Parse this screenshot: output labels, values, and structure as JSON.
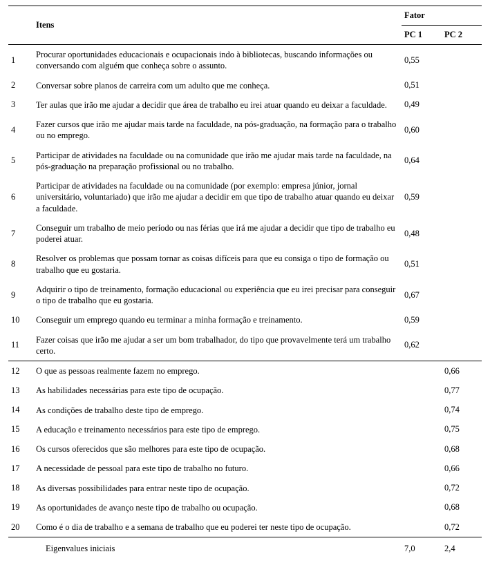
{
  "header": {
    "itens": "Itens",
    "fator": "Fator",
    "pc1": "PC 1",
    "pc2": "PC 2"
  },
  "rows_a": [
    {
      "n": "1",
      "text": "Procurar oportunidades educacionais e ocupacionais indo à bibliotecas, buscando informações ou conversando com alguém que conheça sobre o assunto.",
      "pc1": "0,55"
    },
    {
      "n": "2",
      "text": "Conversar sobre planos de carreira com um adulto que me conheça.",
      "pc1": "0,51"
    },
    {
      "n": "3",
      "text": "Ter aulas que irão me ajudar a decidir que área de trabalho eu irei atuar quando eu deixar a faculdade.",
      "pc1": "0,49"
    },
    {
      "n": "4",
      "text": "Fazer cursos que irão me ajudar mais tarde na faculdade, na pós-graduação, na formação para o trabalho ou no emprego.",
      "pc1": "0,60"
    },
    {
      "n": "5",
      "text": "Participar de atividades na faculdade ou na comunidade que irão me ajudar mais tarde na faculdade, na pós-graduação na preparação profissional ou no trabalho.",
      "pc1": "0,64"
    },
    {
      "n": "6",
      "text": "Participar de atividades na faculdade ou na comunidade (por exemplo: empresa júnior, jornal universitário, voluntariado) que irão me ajudar a decidir em que tipo de trabalho atuar quando eu deixar a faculdade.",
      "pc1": "0,59"
    },
    {
      "n": "7",
      "text": "Conseguir um trabalho de meio período ou nas férias que irá me ajudar a decidir que tipo de trabalho eu poderei atuar.",
      "pc1": "0,48"
    },
    {
      "n": "8",
      "text": "Resolver os problemas que possam tornar as coisas difíceis para que eu consiga o tipo de formação ou trabalho que eu gostaria.",
      "pc1": "0,51"
    },
    {
      "n": "9",
      "text": "Adquirir o tipo de treinamento, formação educacional ou experiência que eu irei precisar para conseguir o tipo de trabalho que eu gostaria.",
      "pc1": "0,67"
    },
    {
      "n": "10",
      "text": "Conseguir um emprego quando eu terminar a minha formação e treinamento.",
      "pc1": "0,59"
    },
    {
      "n": "11",
      "text": "Fazer coisas que irão me ajudar a ser um bom trabalhador, do tipo que provavelmente terá um trabalho certo.",
      "pc1": "0,62"
    }
  ],
  "rows_b": [
    {
      "n": "12",
      "text": "O que as pessoas realmente fazem no emprego.",
      "pc2": "0,66"
    },
    {
      "n": "13",
      "text": "As habilidades necessárias para este tipo de ocupação.",
      "pc2": "0,77"
    },
    {
      "n": "14",
      "text": "As condições de trabalho deste tipo de emprego.",
      "pc2": "0,74"
    },
    {
      "n": "15",
      "text": "A educação e treinamento necessários para este tipo de emprego.",
      "pc2": "0,75"
    },
    {
      "n": "16",
      "text": "Os cursos oferecidos que são melhores para este tipo de ocupação.",
      "pc2": "0,68"
    },
    {
      "n": "17",
      "text": "A necessidade de pessoal para este tipo de trabalho no futuro.",
      "pc2": "0,66"
    },
    {
      "n": "18",
      "text": "As diversas possibilidades para entrar neste tipo de ocupação.",
      "pc2": "0,72"
    },
    {
      "n": "19",
      "text": "As oportunidades de avanço neste tipo de trabalho ou ocupação.",
      "pc2": "0,68"
    },
    {
      "n": "20",
      "text": "Como é o dia de trabalho e a semana de trabalho que eu poderei ter neste tipo de ocupação.",
      "pc2": "0,72"
    }
  ],
  "footer": {
    "label": "Eigenvalues iniciais",
    "pc1": "7,0",
    "pc2": "2,4"
  }
}
